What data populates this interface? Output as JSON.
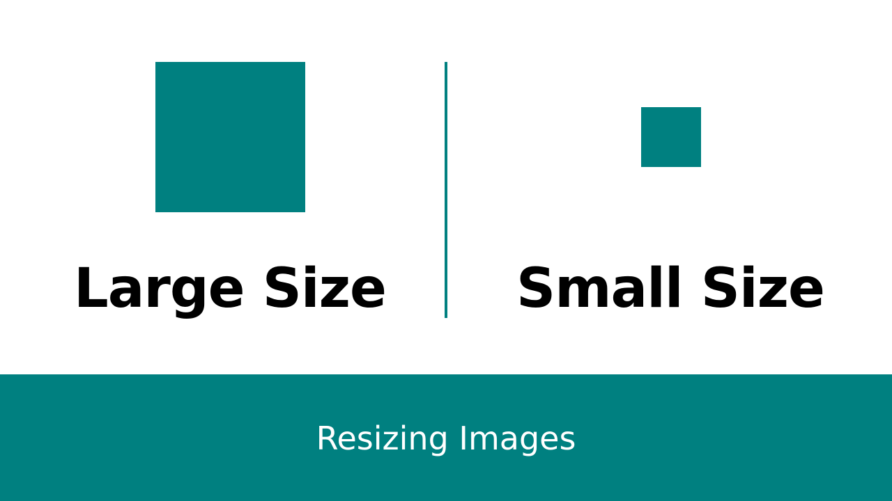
{
  "colors": {
    "accent": "#008080",
    "background": "#ffffff",
    "text": "#000000",
    "footer_text": "#ffffff"
  },
  "left_panel": {
    "label": "Large Size"
  },
  "right_panel": {
    "label": "Small Size"
  },
  "footer": {
    "title": "Resizing Images"
  }
}
